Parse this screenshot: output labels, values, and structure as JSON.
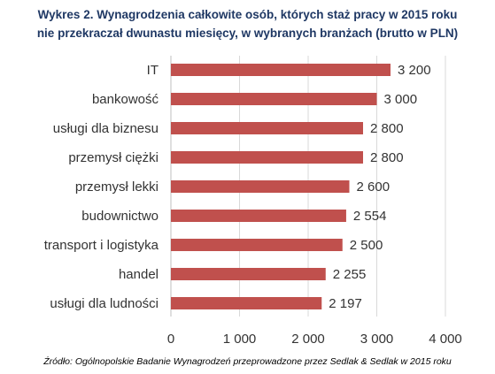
{
  "header": {
    "title_line1": "Wykres 2. Wynagrodzenia całkowite osób, których staż pracy w 2015 roku",
    "title_line2": "nie przekraczał dwunastu miesięcy, w wybranych branżach (brutto w PLN)"
  },
  "footer": {
    "source": "Źródło: Ogólnopolskie Badanie Wynagrodzeń przeprowadzone przez Sedlak & Sedlak w 2015 roku"
  },
  "chart_data": {
    "type": "bar",
    "orientation": "horizontal",
    "categories": [
      "IT",
      "bankowość",
      "usługi dla biznesu",
      "przemysł ciężki",
      "przemysł lekki",
      "budownictwo",
      "transport i logistyka",
      "handel",
      "usługi dla ludności"
    ],
    "values": [
      3200,
      3000,
      2800,
      2800,
      2600,
      2554,
      2500,
      2255,
      2197
    ],
    "value_labels": [
      "3 200",
      "3 000",
      "2 800",
      "2 800",
      "2 600",
      "2 554",
      "2 500",
      "2 255",
      "2 197"
    ],
    "xlim": [
      0,
      4000
    ],
    "xticks": [
      0,
      1000,
      2000,
      3000,
      4000
    ],
    "xtick_labels": [
      "0",
      "1 000",
      "2 000",
      "3 000",
      "4 000"
    ],
    "bar_color": "#c0504d",
    "grid": true,
    "grid_color": "#d9d9d9"
  }
}
